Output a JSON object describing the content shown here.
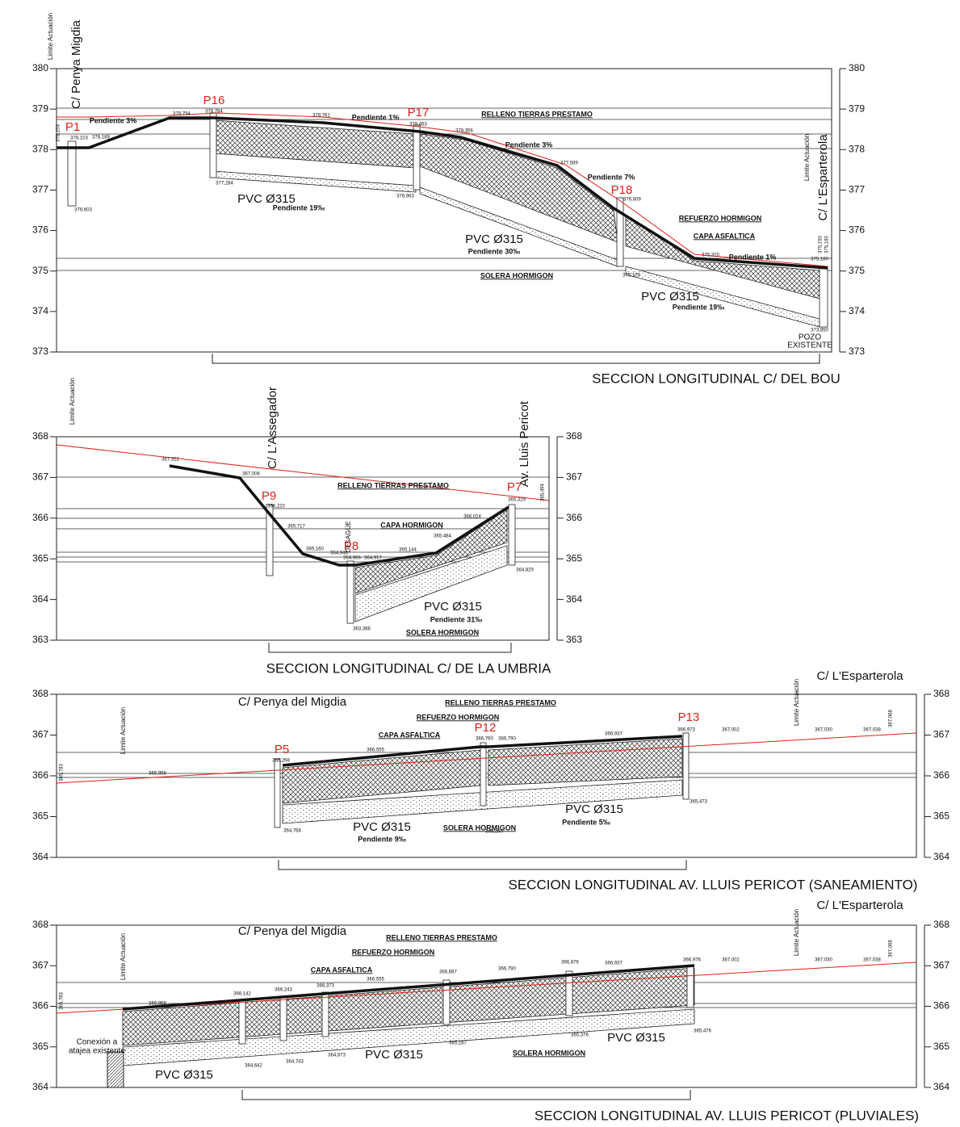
{
  "sections": [
    {
      "title": "SECCION LONGITUDINAL C/ DEL BOU",
      "yticks": [
        380,
        379,
        378,
        377,
        376,
        375,
        374,
        373
      ],
      "labels": [
        "Limite Actuación",
        "C/ Penya Migdia",
        "P1",
        "Pendiente  3%",
        "P16",
        "Pendiente  1%",
        "P17",
        "RELLENO  TIERRAS  PRESTAMO",
        "Pendiente  3%",
        "Pendiente  7%",
        "P18",
        "REFUERZO  HORMIGON",
        "CAPA  ASFALTICA",
        "Pendiente  1%",
        "PVC Ø315",
        "Pendiente  19‰",
        "PVC Ø315",
        "Pendiente  30‰",
        "SOLERA  HORMIGON",
        "PVC Ø315",
        "Pendiente  19‰",
        "Limite Actuación",
        "C/ L'Esparterola",
        "POZO",
        "EXISTENTE",
        "378,103",
        "378,103",
        "378,189",
        "378,794",
        "378,784",
        "378,761",
        "378,463",
        "378,356",
        "377,589",
        "376,609",
        "375,320",
        "375,150",
        "375,180",
        "375,180",
        "377,284",
        "376,963",
        "376,603",
        "375,109",
        "373,850"
      ]
    },
    {
      "title": "SECCION LONGITUDINAL C/ DE LA UMBRIA",
      "yticks": [
        368,
        367,
        366,
        365,
        364,
        363
      ],
      "labels": [
        "Limite Actuación",
        "C/ L'Assegador",
        "Av. Lluis Pericot",
        "RELLENO  TIERRAS  PRESTAMO",
        "P7",
        "P9",
        "DESAGÜE",
        "CAPA  HORMIGON",
        "P8",
        "PVC Ø315",
        "Pendiente  31‰",
        "SOLERA  HORMIGON",
        "367,322",
        "367,006",
        "366,220",
        "365,717",
        "365,160",
        "364,948",
        "364,966",
        "364,917",
        "365,144",
        "365,484",
        "366,024",
        "365,329",
        "365,494",
        "364,829",
        "363,386"
      ]
    },
    {
      "title": "SECCION LONGITUDINAL AV. LLUIS PERICOT (SANEAMIENTO)",
      "yticks": [
        368,
        367,
        366,
        365,
        364
      ],
      "labels": [
        "C/ L'Esparterola",
        "Limite Actuación",
        "C/ Penya del Migdia",
        "RELLENO  TIERRAS  PRESTAMO",
        "REFUERZO  HORMIGON",
        "P13",
        "CAPA  ASFALTICA",
        "P12",
        "Limite Actuación",
        "P5",
        "PVC Ø315",
        "Pendiente  9‰",
        "SOLERA  HORMIGON",
        "PVC Ø315",
        "Pendiente  5‰",
        "365,783",
        "365,958",
        "366,268",
        "366,555",
        "366,760",
        "366,790",
        "366,937",
        "366,973",
        "367,002",
        "367,030",
        "367,038",
        "367,068",
        "365,473",
        "365,260",
        "364,768"
      ]
    },
    {
      "title": "SECCION LONGITUDINAL AV. LLUIS PERICOT (PLUVIALES)",
      "yticks": [
        368,
        367,
        366,
        365,
        364
      ],
      "labels": [
        "C/ L'Esparterola",
        "Limite Actuación",
        "C/ Penya del Migdia",
        "RELLENO  TIERRAS  PRESTAMO",
        "REFUERZO  HORMIGON",
        "CAPA  ASFALTICA",
        "Limite Actuación",
        "Conexión a",
        "atajea existente",
        "PVC Ø315",
        "PVC Ø315",
        "PVC Ø315",
        "SOLERA  HORMIGON",
        "365,783",
        "365,958",
        "366,142",
        "366,243",
        "366,373",
        "366,555",
        "366,687",
        "366,790",
        "366,876",
        "366,937",
        "366,976",
        "367,002",
        "367,030",
        "367,038",
        "367,068",
        "365,476",
        "365,376",
        "365,187",
        "364,873",
        "364,743",
        "364,642"
      ]
    }
  ]
}
